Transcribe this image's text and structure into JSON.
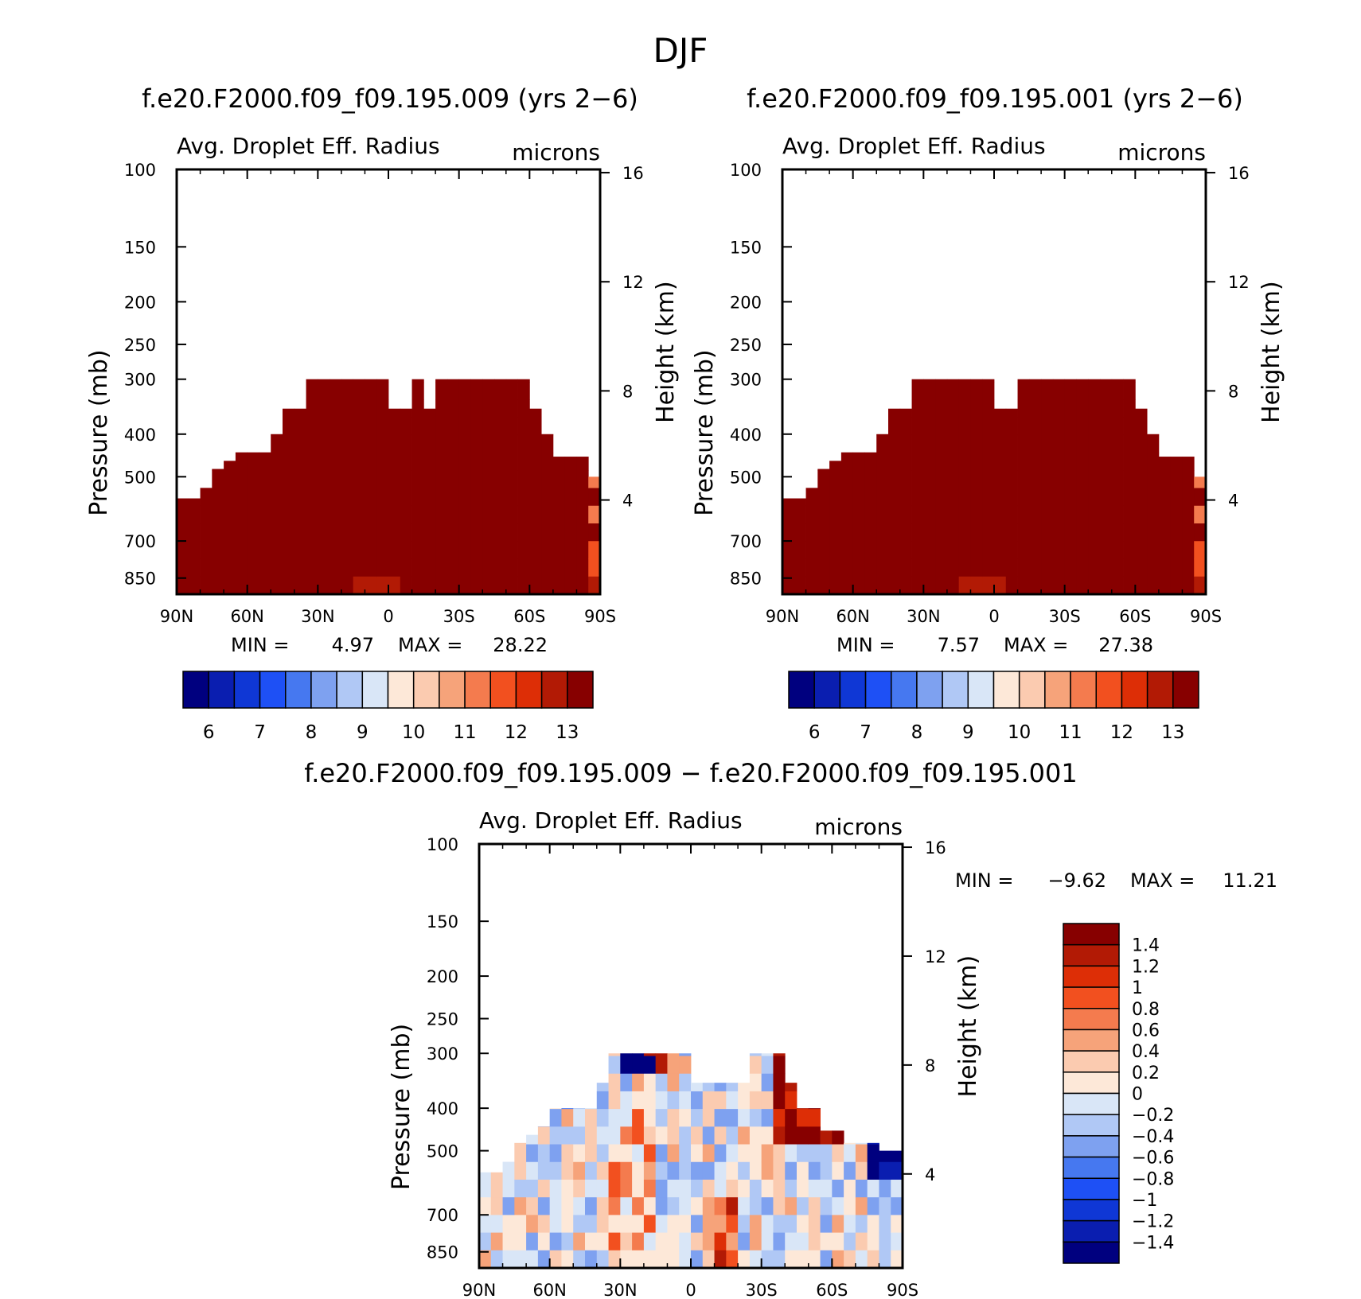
{
  "title": "DJF",
  "palettes": {
    "abs": [
      "#00007f",
      "#0a1eb0",
      "#0f37d5",
      "#1e50f5",
      "#4678f0",
      "#7ea1f0",
      "#b0c8f5",
      "#d9e6f7",
      "#fde8d8",
      "#fbcbb0",
      "#f6a37a",
      "#f47b4e",
      "#f2501f",
      "#dd2e06",
      "#b21a05",
      "#870000"
    ],
    "diff": [
      "#870000",
      "#b21a05",
      "#dd2e06",
      "#f2501f",
      "#f47b4e",
      "#f6a37a",
      "#fbcbb0",
      "#fde8d8",
      "#d9e6f7",
      "#b0c8f5",
      "#7ea1f0",
      "#4678f0",
      "#1e50f5",
      "#0f37d5",
      "#0a1eb0",
      "#00007f"
    ],
    "lat_bins": 36,
    "lev_bins": 24
  },
  "chart_data": [
    {
      "type": "heatmap",
      "title": "f.e20.F2000.f09_f09.195.009 (yrs 2−6)",
      "variable": "Avg. Droplet Eff. Radius",
      "units": "microns",
      "ylabel": "Pressure (mb)",
      "ylabel_right": "Height (km)",
      "x_ticks": [
        "90N",
        "60N",
        "30N",
        "0",
        "30S",
        "60S",
        "90S"
      ],
      "y_ticks": [
        100,
        150,
        200,
        250,
        300,
        400,
        500,
        700,
        850
      ],
      "y_right_ticks": [
        16,
        12,
        8,
        4
      ],
      "ylim": [
        100,
        925
      ],
      "min_label": "MIN =",
      "min_value": "4.97",
      "max_label": "MAX =",
      "max_value": "28.22",
      "colorbar_labels": [
        "6",
        "7",
        "8",
        "9",
        "10",
        "11",
        "12",
        "13"
      ],
      "top_profile_mb": [
        560,
        560,
        530,
        480,
        460,
        440,
        440,
        440,
        400,
        350,
        350,
        300,
        300,
        300,
        300,
        300,
        300,
        300,
        350,
        350,
        300,
        350,
        300,
        300,
        300,
        300,
        300,
        300,
        300,
        300,
        350,
        400,
        450,
        450,
        450,
        500
      ],
      "variant": "a"
    },
    {
      "type": "heatmap",
      "title": "f.e20.F2000.f09_f09.195.001 (yrs 2−6)",
      "variable": "Avg. Droplet Eff. Radius",
      "units": "microns",
      "ylabel": "Pressure (mb)",
      "ylabel_right": "Height (km)",
      "x_ticks": [
        "90N",
        "60N",
        "30N",
        "0",
        "30S",
        "60S",
        "90S"
      ],
      "y_ticks": [
        100,
        150,
        200,
        250,
        300,
        400,
        500,
        700,
        850
      ],
      "y_right_ticks": [
        16,
        12,
        8,
        4
      ],
      "ylim": [
        100,
        925
      ],
      "min_label": "MIN =",
      "min_value": "7.57",
      "max_label": "MAX =",
      "max_value": "27.38",
      "colorbar_labels": [
        "6",
        "7",
        "8",
        "9",
        "10",
        "11",
        "12",
        "13"
      ],
      "top_profile_mb": [
        560,
        560,
        530,
        480,
        460,
        440,
        440,
        440,
        400,
        350,
        350,
        300,
        300,
        300,
        300,
        300,
        300,
        300,
        350,
        350,
        300,
        300,
        300,
        300,
        300,
        300,
        300,
        300,
        300,
        300,
        350,
        400,
        450,
        450,
        450,
        500
      ],
      "variant": "b"
    },
    {
      "type": "heatmap",
      "title": "f.e20.F2000.f09_f09.195.009 − f.e20.F2000.f09_f09.195.001",
      "variable": "Avg. Droplet Eff. Radius",
      "units": "microns",
      "ylabel": "Pressure (mb)",
      "ylabel_right": "Height (km)",
      "x_ticks": [
        "90N",
        "60N",
        "30N",
        "0",
        "30S",
        "60S",
        "90S"
      ],
      "y_ticks": [
        100,
        150,
        200,
        250,
        300,
        400,
        500,
        700,
        850
      ],
      "y_right_ticks": [
        16,
        12,
        8,
        4
      ],
      "ylim": [
        100,
        925
      ],
      "min_label": "MIN =",
      "min_value": "−9.62",
      "max_label": "MAX =",
      "max_value": "11.21",
      "colorbar_labels": [
        "1.4",
        "1.2",
        "1",
        "0.8",
        "0.6",
        "0.4",
        "0.2",
        "0",
        "−0.2",
        "−0.4",
        "−0.6",
        "−0.8",
        "−1",
        "−1.2",
        "−1.4"
      ],
      "top_profile_mb": [
        560,
        560,
        530,
        480,
        460,
        440,
        400,
        400,
        400,
        400,
        350,
        300,
        300,
        300,
        300,
        300,
        300,
        300,
        350,
        350,
        350,
        350,
        350,
        300,
        300,
        300,
        350,
        400,
        400,
        450,
        450,
        480,
        480,
        480,
        500,
        500
      ],
      "variant": "diff"
    }
  ]
}
